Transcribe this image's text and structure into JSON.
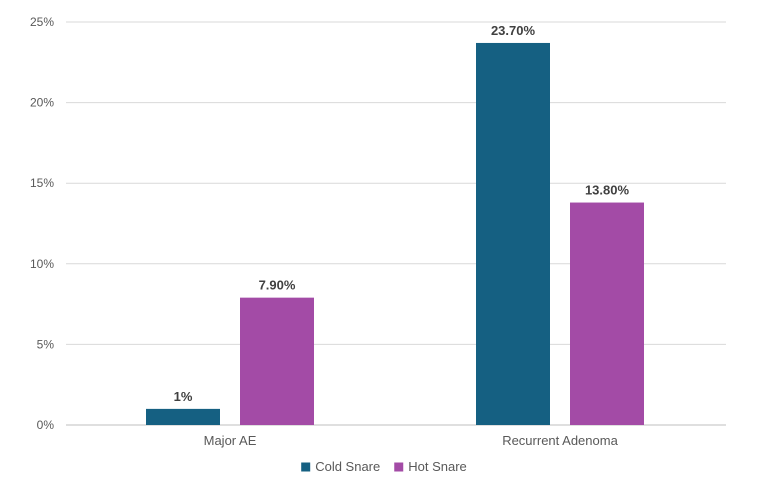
{
  "chart_data": {
    "type": "bar",
    "title": "",
    "xlabel": "",
    "ylabel": "",
    "categories": [
      "Major AE",
      "Recurrent Adenoma"
    ],
    "series": [
      {
        "name": "Cold Snare",
        "color": "#156082",
        "values": [
          1.0,
          23.7
        ],
        "labels": [
          "1%",
          "23.70%"
        ]
      },
      {
        "name": "Hot Snare",
        "color": "#A34BA6",
        "values": [
          7.9,
          13.8
        ],
        "labels": [
          "7.90%",
          "13.80%"
        ]
      }
    ],
    "ylim": [
      0,
      25
    ],
    "yticks": [
      0,
      5,
      10,
      15,
      20,
      25
    ],
    "ytick_labels": [
      "0%",
      "5%",
      "10%",
      "15%",
      "20%",
      "25%"
    ],
    "grid": true,
    "legend_position": "bottom"
  }
}
